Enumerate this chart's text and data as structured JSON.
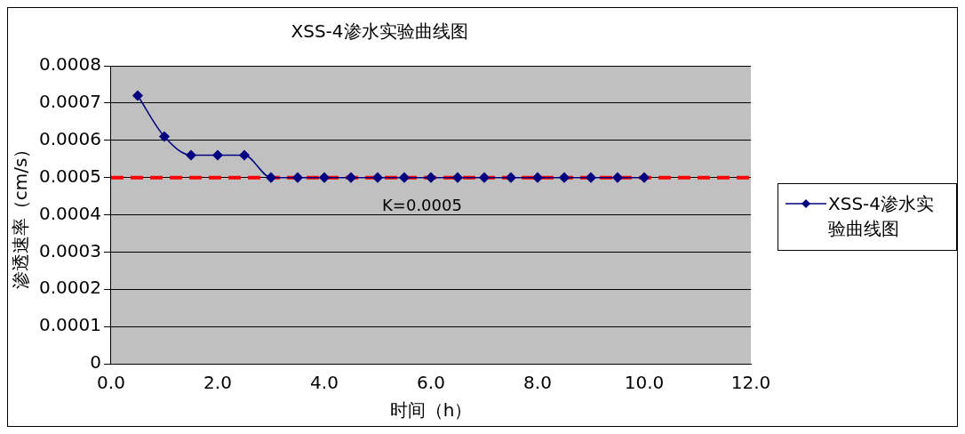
{
  "chart_data": {
    "type": "line",
    "title": "XSS-4渗水实验曲线图",
    "xlabel": "时间（h）",
    "ylabel": "渗透速率（cm/s）",
    "x": [
      0.5,
      1.0,
      1.5,
      2.0,
      2.5,
      3.0,
      3.5,
      4.0,
      4.5,
      5.0,
      5.5,
      6.0,
      6.5,
      7.0,
      7.5,
      8.0,
      8.5,
      9.0,
      9.5,
      10.0
    ],
    "series": [
      {
        "name": "XSS-4渗水实验曲线图",
        "color": "#000080",
        "values": [
          0.00072,
          0.00061,
          0.00056,
          0.00056,
          0.00056,
          0.0005,
          0.0005,
          0.0005,
          0.0005,
          0.0005,
          0.0005,
          0.0005,
          0.0005,
          0.0005,
          0.0005,
          0.0005,
          0.0005,
          0.0005,
          0.0005,
          0.0005
        ]
      }
    ],
    "xlim": [
      0,
      12
    ],
    "xticks": [
      {
        "value": 0,
        "label": "0.0"
      },
      {
        "value": 2,
        "label": "2.0"
      },
      {
        "value": 4,
        "label": "4.0"
      },
      {
        "value": 6,
        "label": "6.0"
      },
      {
        "value": 8,
        "label": "8.0"
      },
      {
        "value": 10,
        "label": "10.0"
      },
      {
        "value": 12,
        "label": "12.0"
      }
    ],
    "ylim": [
      0,
      0.0008
    ],
    "yticks": [
      0,
      0.0001,
      0.0002,
      0.0003,
      0.0004,
      0.0005,
      0.0006,
      0.0007,
      0.0008
    ],
    "ref_lines": [
      {
        "axis": "y",
        "value": 0.0005,
        "label": "K=0.0005",
        "color": "#ff0000",
        "line_style": "dashed"
      }
    ],
    "grid": "y",
    "legend": "right",
    "marker": "diamond",
    "line_style": "solid"
  }
}
